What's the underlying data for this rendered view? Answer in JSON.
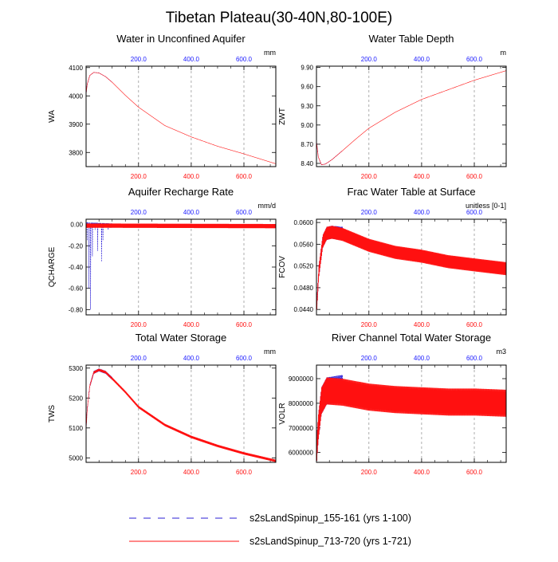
{
  "title": "Tibetan Plateau(30-40N,80-100E)",
  "colors": {
    "run1": "#2b1fd6",
    "run2": "#ff1010",
    "axis": "#000000",
    "grid": "#9a9a9a",
    "topTick": "#1a1aff",
    "bottomTick": "#ff1010"
  },
  "legend": {
    "items": [
      {
        "label": "s2sLandSpinup_155-161 (yrs 1-100)",
        "style": "dashed"
      },
      {
        "label": "s2sLandSpinup_713-720 (yrs 1-721)",
        "style": "solid"
      }
    ]
  },
  "chart_data": [
    {
      "type": "line",
      "title": "Water in Unconfined Aquifer",
      "units": "mm",
      "ylabel": "WA",
      "xlim": [
        1,
        721
      ],
      "ylim": [
        3750,
        4105
      ],
      "yticks": [
        3800,
        3900,
        4000,
        4100
      ],
      "yticklabels": [
        "3800",
        "3900",
        "4000",
        "4100"
      ],
      "xticks": [
        200,
        400,
        600
      ],
      "xticklabels": [
        "200.0",
        "400.0",
        "600.0"
      ],
      "series": [
        {
          "name": "s2sLandSpinup_155-161 (yrs 1-100)",
          "x_end": 100,
          "points": [
            [
              1,
              4005
            ],
            [
              5,
              4040
            ],
            [
              15,
              4072
            ],
            [
              30,
              4083
            ],
            [
              50,
              4081
            ],
            [
              75,
              4068
            ],
            [
              100,
              4048
            ]
          ],
          "osc": 0
        },
        {
          "name": "s2sLandSpinup_713-720 (yrs 1-721)",
          "x_end": 721,
          "points": [
            [
              1,
              4005
            ],
            [
              5,
              4040
            ],
            [
              15,
              4072
            ],
            [
              30,
              4083
            ],
            [
              50,
              4081
            ],
            [
              75,
              4068
            ],
            [
              100,
              4048
            ],
            [
              150,
              4002
            ],
            [
              200,
              3960
            ],
            [
              300,
              3895
            ],
            [
              400,
              3855
            ],
            [
              500,
              3822
            ],
            [
              600,
              3795
            ],
            [
              721,
              3760
            ]
          ],
          "osc": 0
        }
      ]
    },
    {
      "type": "line",
      "title": "Water Table Depth",
      "units": "m",
      "ylabel": "ZWT",
      "xlim": [
        1,
        721
      ],
      "ylim": [
        8.35,
        9.92
      ],
      "yticks": [
        8.4,
        8.7,
        9.0,
        9.3,
        9.6,
        9.9
      ],
      "yticklabels": [
        "8.40",
        "8.70",
        "9.00",
        "9.30",
        "9.60",
        "9.90"
      ],
      "xticks": [
        200,
        400,
        600
      ],
      "xticklabels": [
        "200.0",
        "400.0",
        "600.0"
      ],
      "series": [
        {
          "name": "s2sLandSpinup_155-161 (yrs 1-100)",
          "x_end": 100,
          "points": [
            [
              1,
              8.75
            ],
            [
              8,
              8.5
            ],
            [
              20,
              8.38
            ],
            [
              35,
              8.39
            ],
            [
              60,
              8.46
            ],
            [
              100,
              8.6
            ]
          ],
          "osc": 0
        },
        {
          "name": "s2sLandSpinup_713-720 (yrs 1-721)",
          "x_end": 721,
          "points": [
            [
              1,
              8.75
            ],
            [
              8,
              8.5
            ],
            [
              20,
              8.38
            ],
            [
              35,
              8.39
            ],
            [
              60,
              8.46
            ],
            [
              100,
              8.6
            ],
            [
              150,
              8.78
            ],
            [
              200,
              8.95
            ],
            [
              300,
              9.2
            ],
            [
              400,
              9.4
            ],
            [
              500,
              9.55
            ],
            [
              600,
              9.7
            ],
            [
              721,
              9.85
            ]
          ],
          "osc": 0
        }
      ]
    },
    {
      "type": "line",
      "title": "Aquifer Recharge Rate",
      "units": "mm/d",
      "ylabel": "QCHARGE",
      "xlim": [
        1,
        721
      ],
      "ylim": [
        -0.85,
        0.05
      ],
      "yticks": [
        -0.8,
        -0.6,
        -0.4,
        -0.2,
        0.0
      ],
      "yticklabels": [
        "-0.80",
        "-0.60",
        "-0.40",
        "-0.20",
        "0.00"
      ],
      "xticks": [
        200,
        400,
        600
      ],
      "xticklabels": [
        "200.0",
        "400.0",
        "600.0"
      ],
      "series": [
        {
          "name": "s2sLandSpinup_155-161 (yrs 1-100)",
          "x_end": 100,
          "points": [
            [
              1,
              0.0
            ],
            [
              100,
              -0.01
            ]
          ],
          "osc": 0.02,
          "spikes": [
            [
              5,
              -0.15
            ],
            [
              12,
              -0.6
            ],
            [
              18,
              -0.8
            ],
            [
              25,
              -0.3
            ],
            [
              35,
              -0.05
            ],
            [
              45,
              -0.25
            ],
            [
              60,
              -0.35
            ],
            [
              65,
              -0.15
            ],
            [
              85,
              -0.05
            ]
          ]
        },
        {
          "name": "s2sLandSpinup_713-720 (yrs 1-721)",
          "x_end": 721,
          "points": [
            [
              1,
              -0.01
            ],
            [
              721,
              -0.015
            ]
          ],
          "osc": 0.02
        }
      ]
    },
    {
      "type": "line",
      "title": "Frac Water Table at Surface",
      "units": "unitless [0-1]",
      "ylabel": "FCOV",
      "xlim": [
        1,
        721
      ],
      "ylim": [
        0.043,
        0.0606
      ],
      "yticks": [
        0.044,
        0.048,
        0.052,
        0.056,
        0.06
      ],
      "yticklabels": [
        "0.0440",
        "0.0480",
        "0.0520",
        "0.0560",
        "0.0600"
      ],
      "xticks": [
        200,
        400,
        600
      ],
      "xticklabels": [
        "200.0",
        "400.0",
        "600.0"
      ],
      "series": [
        {
          "name": "s2sLandSpinup_155-161 (yrs 1-100)",
          "x_end": 100,
          "points": [
            [
              1,
              0.0435
            ],
            [
              10,
              0.051
            ],
            [
              25,
              0.0565
            ],
            [
              40,
              0.058
            ],
            [
              60,
              0.0582
            ],
            [
              100,
              0.058
            ]
          ],
          "osc": 0.0012
        },
        {
          "name": "s2sLandSpinup_713-720 (yrs 1-721)",
          "x_end": 721,
          "points": [
            [
              1,
              0.0435
            ],
            [
              10,
              0.051
            ],
            [
              25,
              0.0565
            ],
            [
              40,
              0.058
            ],
            [
              60,
              0.0582
            ],
            [
              100,
              0.0578
            ],
            [
              200,
              0.0558
            ],
            [
              300,
              0.0545
            ],
            [
              400,
              0.0538
            ],
            [
              500,
              0.0528
            ],
            [
              600,
              0.0522
            ],
            [
              721,
              0.0515
            ]
          ],
          "osc": 0.0012
        }
      ]
    },
    {
      "type": "line",
      "title": "Total Water Storage",
      "units": "mm",
      "ylabel": "TWS",
      "xlim": [
        1,
        721
      ],
      "ylim": [
        4985,
        5310
      ],
      "yticks": [
        5000,
        5100,
        5200,
        5300
      ],
      "yticklabels": [
        "5000",
        "5100",
        "5200",
        "5300"
      ],
      "xticks": [
        200,
        400,
        600
      ],
      "xticklabels": [
        "200.0",
        "400.0",
        "600.0"
      ],
      "series": [
        {
          "name": "s2sLandSpinup_155-161 (yrs 1-100)",
          "x_end": 100,
          "points": [
            [
              1,
              5090
            ],
            [
              5,
              5160
            ],
            [
              15,
              5240
            ],
            [
              30,
              5285
            ],
            [
              50,
              5294
            ],
            [
              75,
              5286
            ],
            [
              100,
              5265
            ]
          ],
          "osc": 5
        },
        {
          "name": "s2sLandSpinup_713-720 (yrs 1-721)",
          "x_end": 721,
          "points": [
            [
              1,
              5090
            ],
            [
              5,
              5160
            ],
            [
              15,
              5240
            ],
            [
              30,
              5285
            ],
            [
              50,
              5294
            ],
            [
              75,
              5286
            ],
            [
              100,
              5265
            ],
            [
              150,
              5220
            ],
            [
              200,
              5170
            ],
            [
              300,
              5110
            ],
            [
              400,
              5070
            ],
            [
              500,
              5040
            ],
            [
              600,
              5015
            ],
            [
              721,
              4990
            ]
          ],
          "osc": 4
        }
      ]
    },
    {
      "type": "line",
      "title": "River Channel Total Water Storage",
      "units": "m3",
      "ylabel": "VOLR",
      "xlim": [
        1,
        721
      ],
      "ylim": [
        5600000,
        9550000
      ],
      "yticks": [
        6000000,
        7000000,
        8000000,
        9000000
      ],
      "yticklabels": [
        "6000000",
        "7000000",
        "8000000",
        "9000000"
      ],
      "xticks": [
        200,
        400,
        600
      ],
      "xticklabels": [
        "200.0",
        "400.0",
        "600.0"
      ],
      "series": [
        {
          "name": "s2sLandSpinup_155-161 (yrs 1-100)",
          "x_end": 100,
          "points": [
            [
              1,
              5900000
            ],
            [
              8,
              7000000
            ],
            [
              20,
              8100000
            ],
            [
              40,
              8500000
            ],
            [
              100,
              8600000
            ]
          ],
          "osc": 550000
        },
        {
          "name": "s2sLandSpinup_713-720 (yrs 1-721)",
          "x_end": 721,
          "points": [
            [
              1,
              5900000
            ],
            [
              8,
              7000000
            ],
            [
              20,
              8100000
            ],
            [
              40,
              8500000
            ],
            [
              100,
              8450000
            ],
            [
              200,
              8250000
            ],
            [
              300,
              8150000
            ],
            [
              400,
              8100000
            ],
            [
              500,
              8050000
            ],
            [
              600,
              8050000
            ],
            [
              721,
              8000000
            ]
          ],
          "osc": 550000
        }
      ]
    }
  ]
}
